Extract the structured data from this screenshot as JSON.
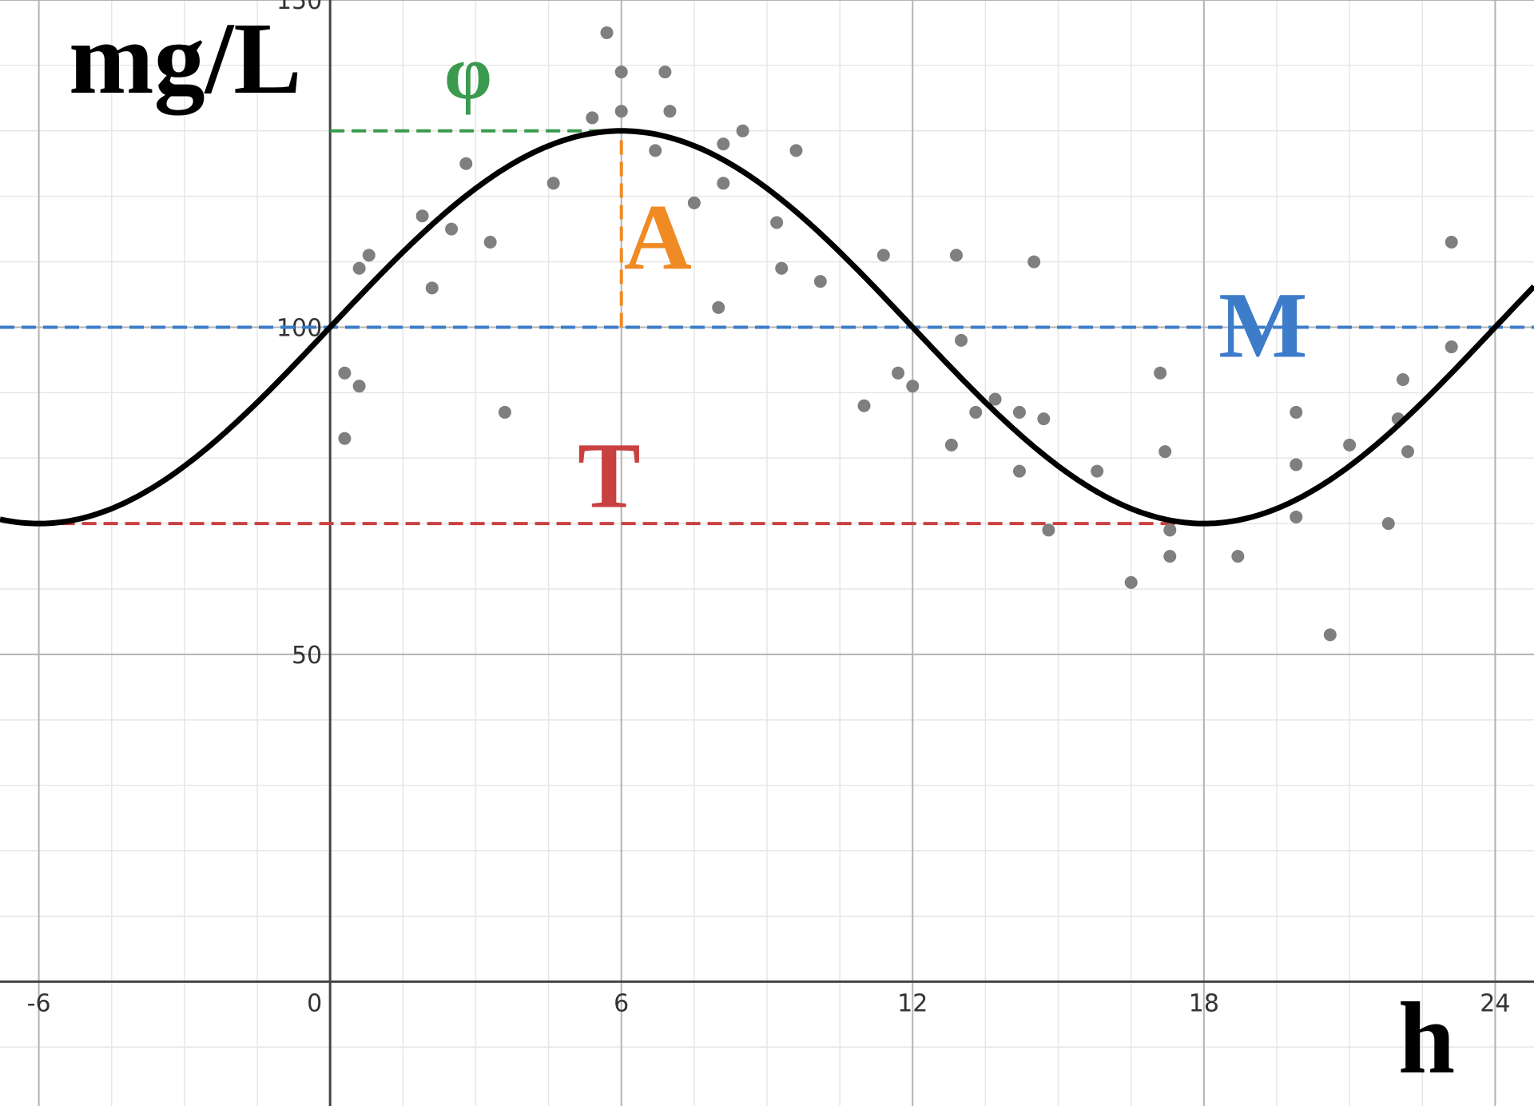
{
  "chart_data": {
    "type": "scatter",
    "xlabel": "h",
    "ylabel": "mg/L",
    "xlim": [
      -6.8,
      24.8
    ],
    "ylim": [
      -19,
      150
    ],
    "x_ticks": [
      -6,
      0,
      6,
      12,
      18,
      24
    ],
    "y_ticks": [
      50,
      100,
      150
    ],
    "x_tick_labels": [
      "-6",
      "0",
      "6",
      "12",
      "18",
      "24"
    ],
    "y_tick_labels": [
      "50",
      "100",
      "150"
    ],
    "grid": true,
    "curve": {
      "type": "sinusoid",
      "midline": 100,
      "amplitude": 30,
      "period": 24,
      "phase_shift": 0,
      "color": "#000000"
    },
    "guides": [
      {
        "label": "M",
        "color": "#3D7CC9",
        "kind": "horizontal",
        "y": 100
      },
      {
        "label": "A",
        "color": "#F08A24",
        "kind": "vertical",
        "x": 6,
        "y_range": [
          100,
          130
        ]
      },
      {
        "label": "T",
        "color": "#C94040",
        "kind": "horizontal",
        "y": 70,
        "x_range": [
          -6,
          18
        ]
      },
      {
        "label": "φ",
        "color": "#3A9A4E",
        "kind": "horizontal",
        "y": 130,
        "x_range": [
          0,
          6
        ]
      }
    ],
    "series": [
      {
        "color": "#7F7F7F",
        "points": [
          [
            0.3,
            93
          ],
          [
            0.3,
            83
          ],
          [
            0.6,
            91
          ],
          [
            0.6,
            109
          ],
          [
            0.8,
            111
          ],
          [
            1.9,
            117
          ],
          [
            2.1,
            106
          ],
          [
            2.5,
            115
          ],
          [
            2.8,
            125
          ],
          [
            3.3,
            113
          ],
          [
            3.6,
            87
          ],
          [
            4.6,
            122
          ],
          [
            5.4,
            132
          ],
          [
            5.7,
            145
          ],
          [
            6.0,
            139
          ],
          [
            6.0,
            133
          ],
          [
            6.7,
            127
          ],
          [
            6.9,
            139
          ],
          [
            7.0,
            133
          ],
          [
            7.5,
            119
          ],
          [
            8.0,
            103
          ],
          [
            8.1,
            128
          ],
          [
            8.1,
            122
          ],
          [
            8.5,
            130
          ],
          [
            9.2,
            116
          ],
          [
            9.3,
            109
          ],
          [
            9.6,
            127
          ],
          [
            10.1,
            107
          ],
          [
            11.0,
            88
          ],
          [
            11.4,
            111
          ],
          [
            11.7,
            93
          ],
          [
            12.0,
            91
          ],
          [
            12.8,
            82
          ],
          [
            12.9,
            111
          ],
          [
            13.0,
            98
          ],
          [
            13.3,
            87
          ],
          [
            13.7,
            89
          ],
          [
            14.2,
            87
          ],
          [
            14.2,
            78
          ],
          [
            14.5,
            110
          ],
          [
            14.7,
            86
          ],
          [
            14.8,
            69
          ],
          [
            15.8,
            78
          ],
          [
            16.5,
            61
          ],
          [
            17.1,
            93
          ],
          [
            17.2,
            81
          ],
          [
            17.3,
            69
          ],
          [
            17.3,
            65
          ],
          [
            18.7,
            65
          ],
          [
            19.9,
            87
          ],
          [
            19.9,
            79
          ],
          [
            19.9,
            71
          ],
          [
            20.6,
            53
          ],
          [
            21.0,
            82
          ],
          [
            21.8,
            70
          ],
          [
            22.0,
            86
          ],
          [
            22.1,
            92
          ],
          [
            22.2,
            81
          ],
          [
            23.1,
            113
          ],
          [
            23.1,
            97
          ]
        ]
      }
    ]
  }
}
